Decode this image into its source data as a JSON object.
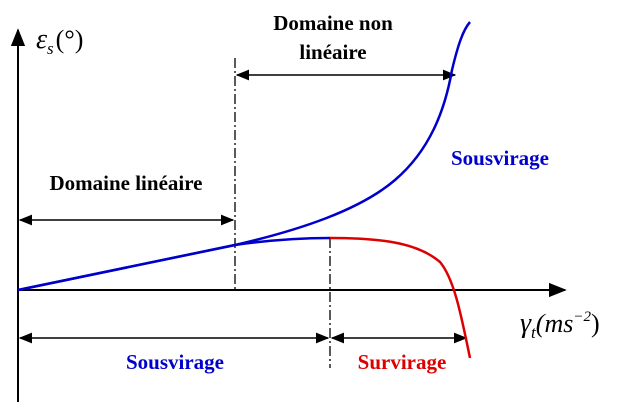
{
  "y_axis": {
    "symbol": "ε",
    "subscript": "s",
    "unit": "(°)"
  },
  "x_axis": {
    "symbol": "γ",
    "subscript": "t",
    "unit_open": "(ms",
    "superscript": "−2",
    "unit_close": ")"
  },
  "nonlinear_domain": [
    "Domaine non",
    "linéaire"
  ],
  "linear_domain": "Domaine linéaire",
  "understeer_curve_label": "Sousvirage",
  "understeer_range_label": "Sousvirage",
  "oversteer_range_label": "Survirage"
}
